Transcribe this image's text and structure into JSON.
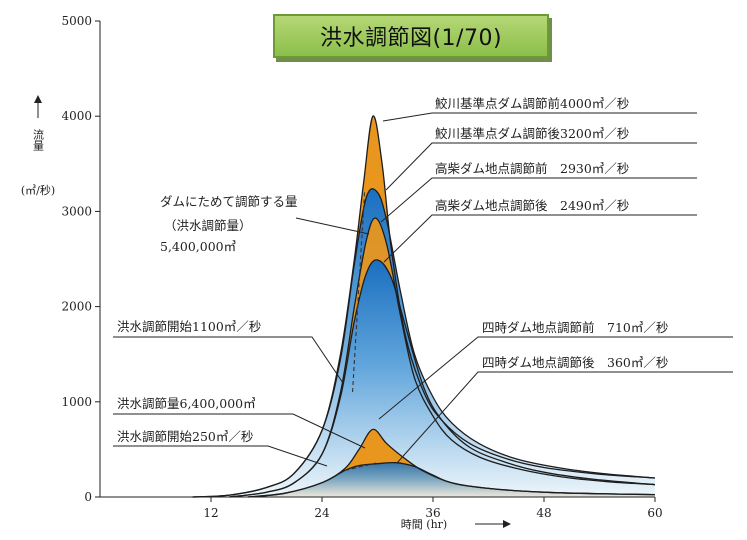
{
  "title": "洪水調節図(1/70)",
  "chart_data": {
    "type": "area",
    "title": "洪水調節図(1/70)",
    "ylabel": "流量",
    "yunit": "(㎥/秒)",
    "xlabel": "時間 (hr)",
    "xlim": [
      0,
      60
    ],
    "ylim": [
      0,
      5000
    ],
    "xticks": [
      12,
      24,
      36,
      48,
      60
    ],
    "yticks": [
      0,
      1000,
      2000,
      3000,
      4000,
      5000
    ],
    "series": [
      {
        "name": "鮫川基準点ダム調節前",
        "peak": 4000,
        "points": [
          [
            10,
            0
          ],
          [
            14,
            20
          ],
          [
            18,
            100
          ],
          [
            21,
            250
          ],
          [
            24,
            700
          ],
          [
            26,
            1500
          ],
          [
            27.5,
            2500
          ],
          [
            28.5,
            3300
          ],
          [
            29.5,
            4000
          ],
          [
            30.5,
            3500
          ],
          [
            31.5,
            2600
          ],
          [
            33,
            1700
          ],
          [
            35,
            1100
          ],
          [
            37,
            800
          ],
          [
            40,
            560
          ],
          [
            44,
            400
          ],
          [
            48,
            310
          ],
          [
            54,
            240
          ],
          [
            60,
            200
          ]
        ]
      },
      {
        "name": "鮫川基準点ダム調節後",
        "peak": 3200,
        "points": [
          [
            10,
            0
          ],
          [
            14,
            20
          ],
          [
            18,
            100
          ],
          [
            21,
            250
          ],
          [
            24,
            700
          ],
          [
            26,
            1450
          ],
          [
            27.5,
            2450
          ],
          [
            28.8,
            3150
          ],
          [
            30,
            3200
          ],
          [
            31,
            2900
          ],
          [
            32.5,
            2150
          ],
          [
            34,
            1500
          ],
          [
            36,
            1050
          ],
          [
            38,
            780
          ],
          [
            41,
            560
          ],
          [
            45,
            400
          ],
          [
            50,
            300
          ],
          [
            55,
            240
          ],
          [
            60,
            200
          ]
        ]
      },
      {
        "name": "高柴ダム地点調節前",
        "peak": 2930,
        "points": [
          [
            14,
            0
          ],
          [
            18,
            50
          ],
          [
            21,
            150
          ],
          [
            24,
            450
          ],
          [
            26,
            1100
          ],
          [
            27.5,
            2000
          ],
          [
            28.8,
            2700
          ],
          [
            29.8,
            2930
          ],
          [
            31,
            2650
          ],
          [
            32.5,
            1900
          ],
          [
            34,
            1250
          ],
          [
            36,
            850
          ],
          [
            38,
            600
          ],
          [
            41,
            420
          ],
          [
            45,
            300
          ],
          [
            50,
            210
          ],
          [
            55,
            160
          ],
          [
            60,
            130
          ]
        ]
      },
      {
        "name": "高柴ダム地点調節後",
        "peak": 2490,
        "points": [
          [
            14,
            0
          ],
          [
            18,
            50
          ],
          [
            21,
            150
          ],
          [
            24,
            450
          ],
          [
            26,
            1050
          ],
          [
            27.5,
            1850
          ],
          [
            28.8,
            2350
          ],
          [
            30,
            2490
          ],
          [
            31.5,
            2300
          ],
          [
            33,
            1800
          ],
          [
            35,
            1150
          ],
          [
            37,
            800
          ],
          [
            40,
            520
          ],
          [
            44,
            360
          ],
          [
            48,
            260
          ],
          [
            53,
            190
          ],
          [
            60,
            130
          ]
        ]
      },
      {
        "name": "四時ダム地点調節前",
        "peak": 710,
        "points": [
          [
            16,
            0
          ],
          [
            20,
            40
          ],
          [
            24,
            150
          ],
          [
            26.5,
            300
          ],
          [
            28,
            500
          ],
          [
            29.5,
            710
          ],
          [
            31,
            560
          ],
          [
            33,
            400
          ],
          [
            35,
            270
          ],
          [
            38,
            150
          ],
          [
            42,
            90
          ],
          [
            48,
            50
          ],
          [
            54,
            35
          ],
          [
            60,
            25
          ]
        ]
      },
      {
        "name": "四時ダム地点調節後",
        "peak": 360,
        "points": [
          [
            16,
            0
          ],
          [
            20,
            40
          ],
          [
            24,
            150
          ],
          [
            26.5,
            280
          ],
          [
            28,
            330
          ],
          [
            30,
            350
          ],
          [
            32,
            360
          ],
          [
            34,
            320
          ],
          [
            36,
            230
          ],
          [
            38,
            150
          ],
          [
            42,
            90
          ],
          [
            48,
            50
          ],
          [
            54,
            35
          ],
          [
            60,
            25
          ]
        ]
      }
    ],
    "annotations": [
      "鮫川基準点ダム調節前4000㎥／秒",
      "鮫川基準点ダム調節後3200㎥／秒",
      "高柴ダム地点調節前　2930㎥／秒",
      "高柴ダム地点調節後　2490㎥／秒",
      "ダムにためて調節する量",
      "（洪水調節量）",
      "5,400,000㎥",
      "洪水調節開始1100㎥／秒",
      "四時ダム地点調節前　710㎥／秒",
      "四時ダム地点調節後　360㎥／秒",
      "洪水調節量6,400,000㎥",
      "洪水調節開始250㎥／秒"
    ],
    "colors": {
      "flood_fill_top": "#1a6fc0",
      "flood_fill_bottom": "#e8f2fa",
      "stored_volume": "#e8961e"
    },
    "grid": false
  }
}
